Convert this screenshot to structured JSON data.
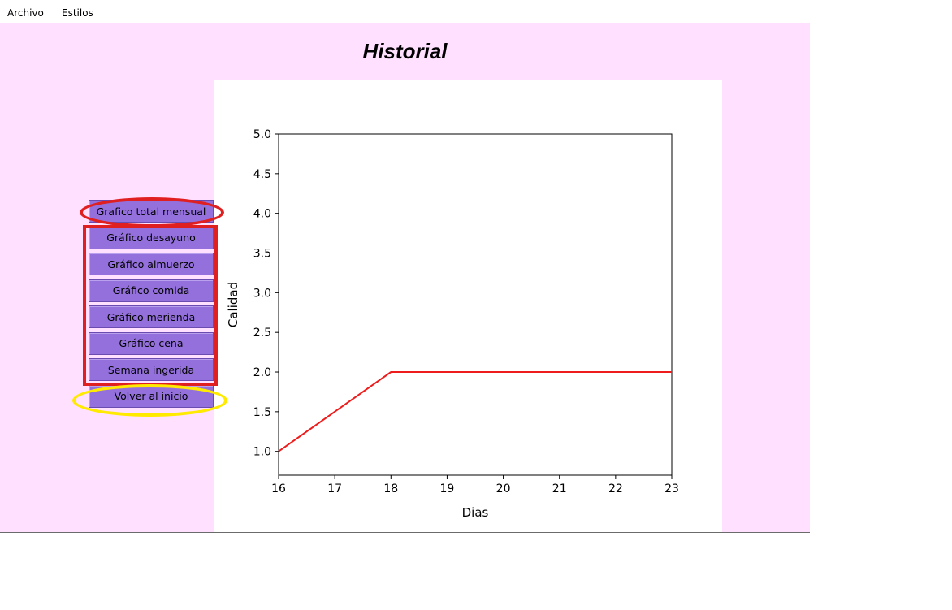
{
  "menubar": {
    "items": [
      "Archivo",
      "Estilos"
    ]
  },
  "window": {
    "title": "Historial"
  },
  "sidebar": {
    "buttons": [
      "Grafico total mensual",
      "Gráfico desayuno",
      "Gráfico almuerzo",
      "Gráfico comida",
      "Gráfico merienda",
      "Gráfico cena",
      "Semana ingerida",
      "Volver al inicio"
    ]
  },
  "annotations": {
    "colors": {
      "red": "#e02020",
      "yellow": "#ffea00"
    }
  },
  "colors": {
    "background": "#ffe0ff",
    "button": "#9370db",
    "line": "#ee1c1c"
  },
  "chart_data": {
    "type": "line",
    "x": [
      16,
      17,
      18,
      19,
      20,
      21,
      22,
      23
    ],
    "series": [
      {
        "values": [
          1.0,
          1.5,
          2.0,
          2.0,
          2.0,
          2.0,
          2.0,
          2.0
        ],
        "color": "#ee1c1c"
      }
    ],
    "xlabel": "Dias",
    "ylabel": "Calidad",
    "xlim": [
      16,
      23
    ],
    "ylim": [
      0.7,
      5.0
    ],
    "xticks": [
      "16",
      "17",
      "18",
      "19",
      "20",
      "21",
      "22",
      "23"
    ],
    "yticks": [
      "1.0",
      "1.5",
      "2.0",
      "2.5",
      "3.0",
      "3.5",
      "4.0",
      "4.5",
      "5.0"
    ],
    "grid": false
  }
}
